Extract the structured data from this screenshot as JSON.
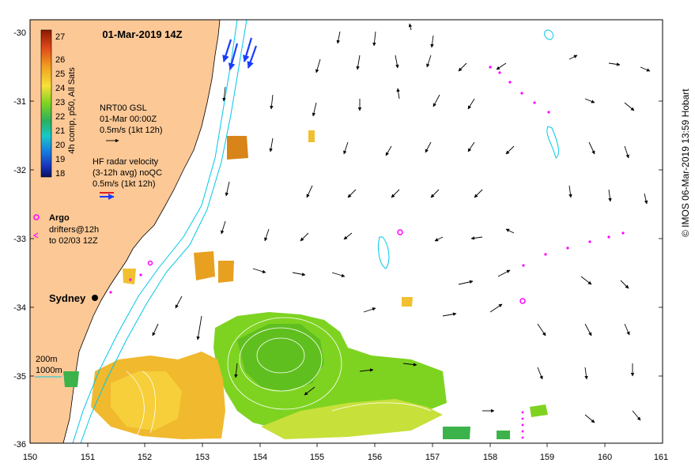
{
  "title": "01-Mar-2019 14Z",
  "credit": "© IMOS 06-Mar-2019 13:59 Hobart",
  "axes": {
    "x_ticks": [
      "150",
      "151",
      "152",
      "153",
      "154",
      "155",
      "156",
      "157",
      "158",
      "159",
      "160",
      "161"
    ],
    "y_ticks": [
      "-30",
      "-31",
      "-32",
      "-33",
      "-34",
      "-35",
      "-36"
    ]
  },
  "colorbar": {
    "label": "4h comp, p50, All Sats",
    "ticks": [
      "27",
      "26",
      "25",
      "24",
      "23",
      "22",
      "21",
      "20",
      "19",
      "18"
    ]
  },
  "legend": {
    "gsl": [
      "NRT00 GSL",
      "01-Mar 00:00Z",
      "0.5m/s (1kt 12h)"
    ],
    "radar": [
      "HF radar velocity",
      "(3-12h avg) noQC",
      "0.5m/s (1kt 12h)"
    ],
    "argo": "Argo",
    "drifters": [
      "drifters@12h",
      "to 02/03 12Z"
    ]
  },
  "place": {
    "city": "Sydney"
  },
  "isobaths": [
    "200m",
    "1000m"
  ],
  "colors": {
    "land": "#fcc896",
    "water": "#ffffff",
    "isobath": "#00c8e6",
    "argo": "#ff00ff",
    "radar_blue": "#1a3cff"
  }
}
